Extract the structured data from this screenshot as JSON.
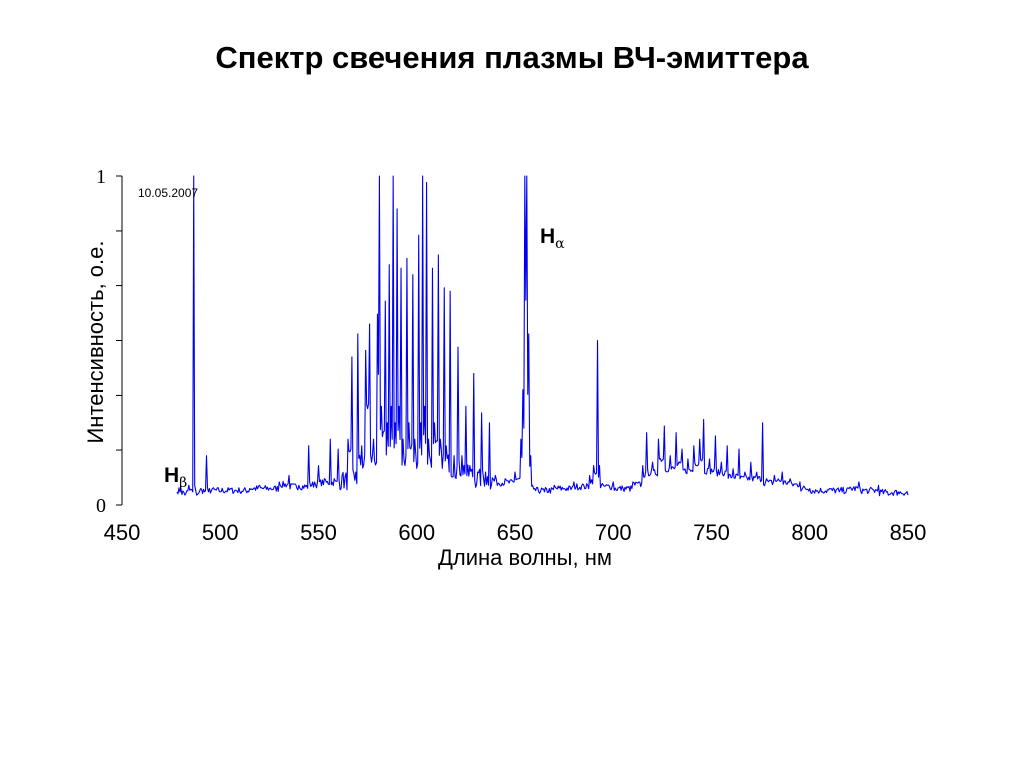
{
  "chart_data": {
    "type": "line",
    "title": "Спектр свечения плазмы ВЧ-эмиттера",
    "xlabel": "Длина волны, нм",
    "ylabel": "Интенсивность, о.е.",
    "xlim": [
      450,
      850
    ],
    "ylim": [
      0,
      1
    ],
    "x_ticks": [
      "450",
      "500",
      "550",
      "600",
      "650",
      "700",
      "750",
      "800",
      "850"
    ],
    "y_tick_labels": [
      "0",
      "1"
    ],
    "y_tick_values": [
      0,
      0.167,
      0.333,
      0.5,
      0.667,
      0.833,
      1
    ],
    "grid": false,
    "line_color": "#0000ee",
    "annotation_date": "10.05.2007",
    "annotations": [
      {
        "label": "H",
        "sub": "β",
        "x": 487
      },
      {
        "label": "H",
        "sub": "α",
        "x": 656
      }
    ],
    "series": [
      {
        "values": [
          [
            478,
            0.04
          ],
          [
            480,
            0.05
          ],
          [
            482,
            0.03
          ],
          [
            484,
            0.06
          ],
          [
            486,
            0.04
          ],
          [
            486.5,
            1.0
          ],
          [
            487,
            0.06
          ],
          [
            488,
            0.03
          ],
          [
            490,
            0.05
          ],
          [
            492,
            0.04
          ],
          [
            493,
            0.15
          ],
          [
            494,
            0.04
          ],
          [
            496,
            0.05
          ],
          [
            500,
            0.04
          ],
          [
            505,
            0.05
          ],
          [
            510,
            0.04
          ],
          [
            515,
            0.05
          ],
          [
            520,
            0.06
          ],
          [
            525,
            0.05
          ],
          [
            530,
            0.07
          ],
          [
            535,
            0.09
          ],
          [
            540,
            0.06
          ],
          [
            545,
            0.18
          ],
          [
            548,
            0.07
          ],
          [
            550,
            0.12
          ],
          [
            553,
            0.08
          ],
          [
            556,
            0.2
          ],
          [
            558,
            0.08
          ],
          [
            560,
            0.17
          ],
          [
            562,
            0.09
          ],
          [
            565,
            0.2
          ],
          [
            567,
            0.45
          ],
          [
            569,
            0.1
          ],
          [
            570,
            0.52
          ],
          [
            572,
            0.18
          ],
          [
            574,
            0.47
          ],
          [
            576,
            0.55
          ],
          [
            578,
            0.2
          ],
          [
            580,
            0.58
          ],
          [
            581,
            1.0
          ],
          [
            582,
            0.3
          ],
          [
            584,
            0.62
          ],
          [
            585,
            0.25
          ],
          [
            586,
            0.73
          ],
          [
            587,
            0.3
          ],
          [
            588,
            1.0
          ],
          [
            589,
            0.25
          ],
          [
            590,
            0.9
          ],
          [
            591,
            0.3
          ],
          [
            592,
            0.72
          ],
          [
            593,
            0.2
          ],
          [
            595,
            0.75
          ],
          [
            596,
            0.25
          ],
          [
            598,
            0.7
          ],
          [
            599,
            0.2
          ],
          [
            601,
            0.82
          ],
          [
            602,
            0.25
          ],
          [
            603,
            1.0
          ],
          [
            604,
            0.3
          ],
          [
            605,
            0.98
          ],
          [
            606,
            0.2
          ],
          [
            608,
            0.72
          ],
          [
            609,
            0.25
          ],
          [
            611,
            0.76
          ],
          [
            612,
            0.2
          ],
          [
            614,
            0.66
          ],
          [
            615,
            0.18
          ],
          [
            617,
            0.65
          ],
          [
            619,
            0.15
          ],
          [
            621,
            0.48
          ],
          [
            623,
            0.15
          ],
          [
            625,
            0.3
          ],
          [
            627,
            0.12
          ],
          [
            629,
            0.4
          ],
          [
            631,
            0.1
          ],
          [
            633,
            0.28
          ],
          [
            635,
            0.1
          ],
          [
            637,
            0.25
          ],
          [
            640,
            0.09
          ],
          [
            645,
            0.08
          ],
          [
            650,
            0.1
          ],
          [
            653,
            0.2
          ],
          [
            654,
            0.35
          ],
          [
            655,
            1.0
          ],
          [
            656,
            1.0
          ],
          [
            657,
            0.52
          ],
          [
            658,
            0.15
          ],
          [
            660,
            0.05
          ],
          [
            665,
            0.04
          ],
          [
            670,
            0.06
          ],
          [
            675,
            0.05
          ],
          [
            680,
            0.07
          ],
          [
            685,
            0.06
          ],
          [
            688,
            0.09
          ],
          [
            690,
            0.12
          ],
          [
            692,
            0.5
          ],
          [
            693,
            0.12
          ],
          [
            695,
            0.06
          ],
          [
            700,
            0.07
          ],
          [
            705,
            0.05
          ],
          [
            710,
            0.07
          ],
          [
            715,
            0.12
          ],
          [
            717,
            0.22
          ],
          [
            720,
            0.13
          ],
          [
            723,
            0.2
          ],
          [
            726,
            0.24
          ],
          [
            729,
            0.15
          ],
          [
            732,
            0.22
          ],
          [
            735,
            0.17
          ],
          [
            738,
            0.14
          ],
          [
            741,
            0.18
          ],
          [
            744,
            0.2
          ],
          [
            746,
            0.26
          ],
          [
            749,
            0.14
          ],
          [
            752,
            0.21
          ],
          [
            755,
            0.13
          ],
          [
            758,
            0.18
          ],
          [
            761,
            0.11
          ],
          [
            764,
            0.17
          ],
          [
            767,
            0.1
          ],
          [
            770,
            0.13
          ],
          [
            773,
            0.1
          ],
          [
            776,
            0.25
          ],
          [
            778,
            0.08
          ],
          [
            782,
            0.09
          ],
          [
            786,
            0.1
          ],
          [
            790,
            0.08
          ],
          [
            795,
            0.07
          ],
          [
            800,
            0.05
          ],
          [
            805,
            0.04
          ],
          [
            810,
            0.05
          ],
          [
            815,
            0.04
          ],
          [
            820,
            0.05
          ],
          [
            825,
            0.07
          ],
          [
            830,
            0.04
          ],
          [
            835,
            0.06
          ],
          [
            840,
            0.03
          ],
          [
            845,
            0.04
          ],
          [
            850,
            0.03
          ]
        ]
      }
    ]
  }
}
